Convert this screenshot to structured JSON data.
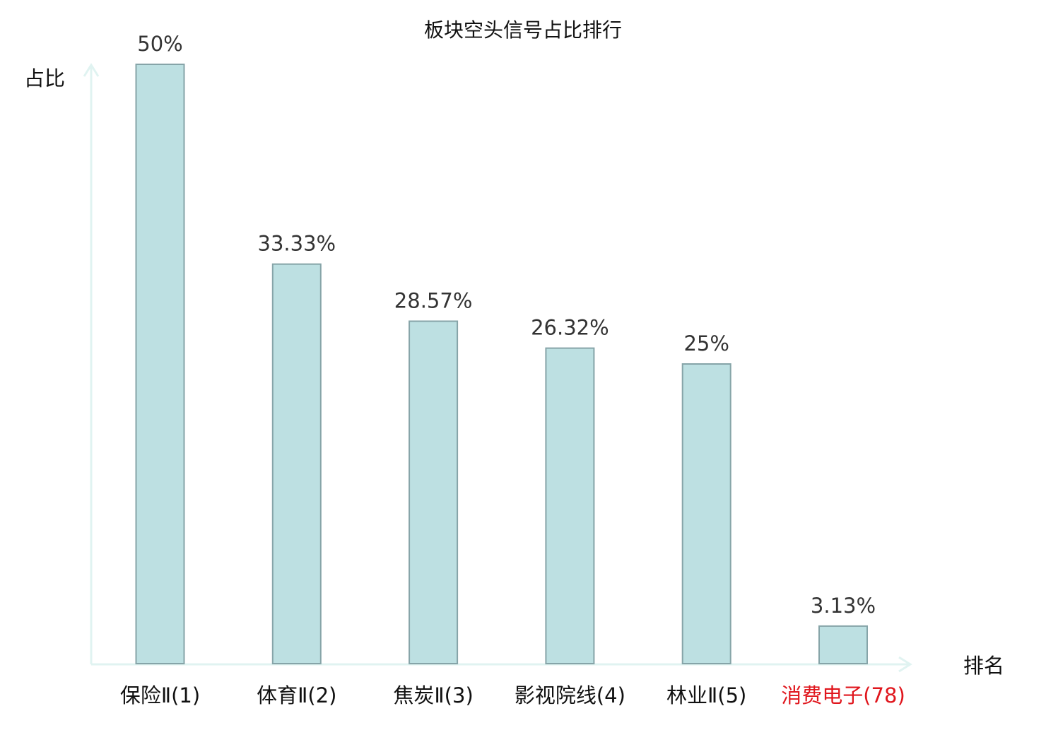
{
  "chart_data": {
    "type": "bar",
    "title": "板块空头信号占比排行",
    "ylabel": "占比",
    "xlabel": "排名",
    "categories": [
      "保险Ⅱ(1)",
      "体育Ⅱ(2)",
      "焦炭Ⅱ(3)",
      "影视院线(4)",
      "林业Ⅱ(5)",
      "消费电子(78)"
    ],
    "values": [
      50,
      33.33,
      28.57,
      26.32,
      25,
      3.13
    ],
    "value_labels": [
      "50%",
      "33.33%",
      "28.57%",
      "26.32%",
      "25%",
      "3.13%"
    ],
    "highlight_index": 5,
    "ylim": [
      0,
      50
    ],
    "grid": false,
    "colors": {
      "bar_fill": "#bde0e2",
      "bar_stroke": "#86a4a8",
      "axis": "#e0f3f1",
      "highlight_text": "#e0161d",
      "value_text": "#333333",
      "text": "#111111"
    }
  }
}
